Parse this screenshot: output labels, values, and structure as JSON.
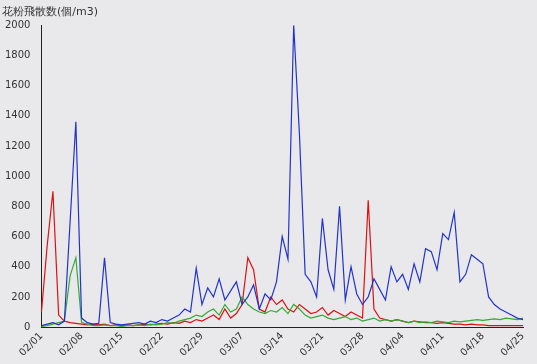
{
  "chart_data": {
    "type": "line",
    "ylabel": "花粉飛散数(個/m3)",
    "categories": [
      "02/01",
      null,
      null,
      null,
      null,
      null,
      null,
      "02/08",
      null,
      null,
      null,
      null,
      null,
      null,
      "02/15",
      null,
      null,
      null,
      null,
      null,
      null,
      "02/22",
      null,
      null,
      null,
      null,
      null,
      null,
      "02/29",
      null,
      null,
      null,
      null,
      null,
      null,
      "03/07",
      null,
      null,
      null,
      null,
      null,
      null,
      "03/14",
      null,
      null,
      null,
      null,
      null,
      null,
      "03/21",
      null,
      null,
      null,
      null,
      null,
      null,
      "03/28",
      null,
      null,
      null,
      null,
      null,
      null,
      "04/04",
      null,
      null,
      null,
      null,
      null,
      null,
      "04/11",
      null,
      null,
      null,
      null,
      null,
      null,
      "04/18",
      null,
      null,
      null,
      null,
      null,
      null,
      "04/25"
    ],
    "series": [
      {
        "color": "#2233cc",
        "values": [
          10,
          20,
          30,
          15,
          40,
          700,
          1360,
          60,
          30,
          20,
          25,
          460,
          30,
          20,
          15,
          20,
          25,
          30,
          20,
          40,
          30,
          50,
          40,
          60,
          80,
          120,
          100,
          390,
          150,
          260,
          200,
          320,
          180,
          240,
          300,
          150,
          200,
          280,
          120,
          220,
          180,
          300,
          600,
          450,
          2000,
          1280,
          350,
          300,
          200,
          720,
          380,
          250,
          800,
          180,
          400,
          220,
          150,
          200,
          320,
          250,
          180,
          400,
          300,
          350,
          250,
          420,
          300,
          520,
          500,
          380,
          620,
          580,
          760,
          300,
          350,
          480,
          450,
          420,
          200,
          150,
          120,
          100,
          80,
          60,
          50
        ]
      },
      {
        "color": "#33aa33",
        "values": [
          5,
          10,
          20,
          30,
          40,
          340,
          460,
          30,
          20,
          10,
          10,
          15,
          10,
          10,
          5,
          10,
          10,
          15,
          10,
          20,
          15,
          20,
          30,
          25,
          40,
          50,
          60,
          80,
          70,
          100,
          120,
          80,
          150,
          100,
          120,
          200,
          150,
          120,
          100,
          90,
          110,
          100,
          130,
          90,
          150,
          120,
          80,
          60,
          70,
          80,
          60,
          50,
          60,
          70,
          50,
          60,
          40,
          50,
          60,
          40,
          50,
          40,
          50,
          40,
          30,
          40,
          30,
          35,
          30,
          40,
          35,
          30,
          40,
          35,
          40,
          45,
          50,
          45,
          50,
          55,
          50,
          60,
          55,
          50,
          60
        ]
      },
      {
        "color": "#dd1111",
        "values": [
          100,
          540,
          900,
          80,
          40,
          30,
          25,
          20,
          15,
          20,
          15,
          20,
          10,
          15,
          10,
          15,
          10,
          15,
          20,
          15,
          20,
          25,
          20,
          30,
          25,
          40,
          30,
          50,
          40,
          60,
          80,
          50,
          120,
          60,
          90,
          150,
          460,
          380,
          120,
          100,
          200,
          150,
          180,
          120,
          100,
          150,
          120,
          90,
          100,
          130,
          80,
          110,
          90,
          70,
          100,
          80,
          60,
          840,
          120,
          60,
          50,
          40,
          50,
          40,
          30,
          40,
          35,
          30,
          30,
          25,
          30,
          25,
          20,
          20,
          15,
          20,
          15,
          15,
          10,
          10,
          10,
          10,
          10,
          10,
          10
        ]
      }
    ],
    "ylim": [
      0,
      2000
    ],
    "yticks": [
      0,
      200,
      400,
      600,
      800,
      1000,
      1200,
      1400,
      1600,
      1800,
      2000
    ],
    "grid": false
  }
}
